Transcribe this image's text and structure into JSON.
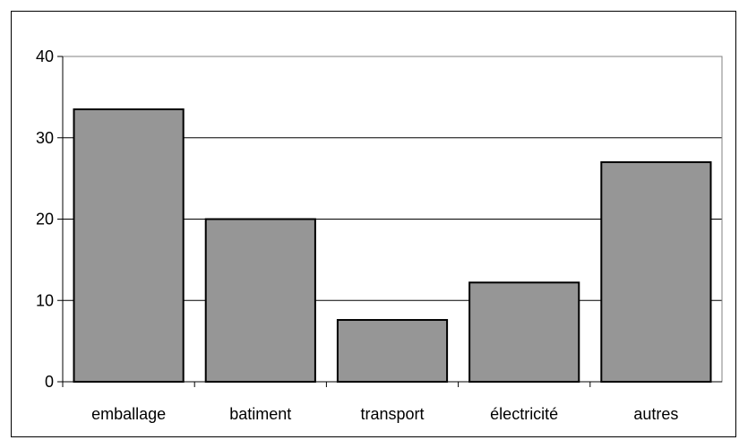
{
  "chart_data": {
    "type": "bar",
    "categories": [
      "emballage",
      "batiment",
      "transport",
      "électricité",
      "autres"
    ],
    "values": [
      33.5,
      20,
      7.6,
      12.2,
      27
    ],
    "ylim": [
      0,
      40
    ],
    "yticks": [
      "0",
      "10",
      "20",
      "30",
      "40"
    ],
    "title": "",
    "xlabel": "",
    "ylabel": "",
    "grid": true,
    "legend": "none",
    "colors": {
      "bar_fill": "#969696",
      "bar_stroke": "#000000",
      "grid": "#000000",
      "axis": "#000000"
    }
  }
}
